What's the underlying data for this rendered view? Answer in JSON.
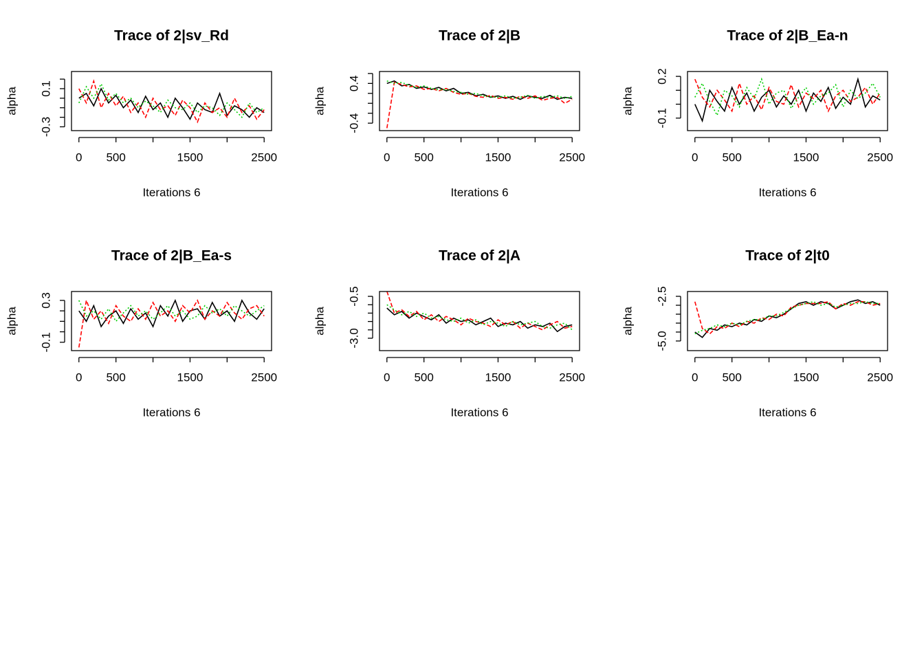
{
  "chart_data": [
    {
      "type": "line",
      "title": "Trace of 2|sv_Rd",
      "xlabel": "Iterations 6",
      "ylabel": "alpha",
      "x": [
        0,
        100,
        200,
        300,
        400,
        500,
        600,
        700,
        800,
        900,
        1000,
        1100,
        1200,
        1300,
        1400,
        1500,
        1600,
        1700,
        1800,
        1900,
        2000,
        2100,
        2200,
        2300,
        2400,
        2500
      ],
      "series": [
        {
          "color": "#000000",
          "linestyle": "solid",
          "values": [
            0.0,
            0.05,
            -0.08,
            0.1,
            -0.05,
            0.03,
            -0.1,
            -0.02,
            -0.15,
            0.02,
            -0.12,
            -0.05,
            -0.2,
            0.0,
            -0.1,
            -0.22,
            -0.05,
            -0.12,
            -0.15,
            0.05,
            -0.18,
            -0.08,
            -0.12,
            -0.2,
            -0.1,
            -0.15
          ]
        },
        {
          "color": "#ff0000",
          "linestyle": "dashed",
          "values": [
            0.1,
            -0.05,
            0.18,
            -0.1,
            0.05,
            -0.08,
            0.02,
            -0.15,
            -0.05,
            -0.2,
            0.0,
            -0.12,
            -0.08,
            -0.18,
            -0.02,
            -0.1,
            -0.25,
            -0.05,
            -0.15,
            -0.1,
            -0.2,
            0.0,
            -0.15,
            -0.08,
            -0.22,
            -0.12
          ]
        },
        {
          "color": "#00cd00",
          "linestyle": "dotted",
          "values": [
            -0.05,
            0.12,
            0.0,
            0.15,
            -0.02,
            0.05,
            -0.05,
            0.0,
            -0.1,
            -0.03,
            -0.08,
            -0.15,
            -0.02,
            -0.1,
            -0.12,
            -0.05,
            -0.15,
            -0.08,
            -0.1,
            -0.18,
            -0.05,
            -0.12,
            -0.2,
            -0.05,
            -0.15,
            -0.1
          ]
        }
      ],
      "xlim": [
        -100,
        2600
      ],
      "xticks": [
        0,
        500,
        1500,
        2500
      ],
      "xminor": [
        1000,
        2000
      ],
      "ylim": [
        -0.34,
        0.28
      ],
      "yticks": [
        -0.3,
        0.1
      ],
      "yminor": [
        -0.2,
        -0.1,
        0,
        0.2
      ]
    },
    {
      "type": "line",
      "title": "Trace of 2|B",
      "xlabel": "Iterations 6",
      "ylabel": "alpha",
      "x": [
        0,
        100,
        200,
        300,
        400,
        500,
        600,
        700,
        800,
        900,
        1000,
        1100,
        1200,
        1300,
        1400,
        1500,
        1600,
        1700,
        1800,
        1900,
        2000,
        2100,
        2200,
        2300,
        2400,
        2500
      ],
      "series": [
        {
          "color": "#000000",
          "linestyle": "solid",
          "values": [
            0.4,
            0.45,
            0.35,
            0.38,
            0.3,
            0.33,
            0.28,
            0.32,
            0.25,
            0.3,
            0.2,
            0.22,
            0.15,
            0.18,
            0.12,
            0.15,
            0.1,
            0.14,
            0.08,
            0.15,
            0.12,
            0.1,
            0.16,
            0.08,
            0.12,
            0.1
          ]
        },
        {
          "color": "#ff0000",
          "linestyle": "dashed",
          "values": [
            -0.5,
            0.42,
            0.38,
            0.33,
            0.35,
            0.28,
            0.3,
            0.25,
            0.3,
            0.22,
            0.18,
            0.2,
            0.14,
            0.12,
            0.16,
            0.1,
            0.12,
            0.08,
            0.14,
            0.1,
            0.15,
            0.06,
            0.1,
            0.12,
            0.0,
            0.08
          ]
        },
        {
          "color": "#00cd00",
          "linestyle": "dotted",
          "values": [
            0.45,
            0.4,
            0.42,
            0.36,
            0.32,
            0.35,
            0.3,
            0.27,
            0.28,
            0.24,
            0.22,
            0.18,
            0.2,
            0.15,
            0.13,
            0.12,
            0.15,
            0.1,
            0.12,
            0.16,
            0.1,
            0.14,
            0.12,
            0.15,
            0.1,
            0.14
          ]
        }
      ],
      "xlim": [
        -100,
        2600
      ],
      "xticks": [
        0,
        500,
        1500,
        2500
      ],
      "xminor": [
        1000,
        2000
      ],
      "ylim": [
        -0.55,
        0.64
      ],
      "yticks": [
        -0.4,
        0.4
      ],
      "yminor": [
        -0.2,
        0,
        0.2,
        0.6
      ]
    },
    {
      "type": "line",
      "title": "Trace of 2|B_Ea-n",
      "xlabel": "Iterations 6",
      "ylabel": "alpha",
      "x": [
        0,
        100,
        200,
        300,
        400,
        500,
        600,
        700,
        800,
        900,
        1000,
        1100,
        1200,
        1300,
        1400,
        1500,
        1600,
        1700,
        1800,
        1900,
        2000,
        2100,
        2200,
        2300,
        2400,
        2500
      ],
      "series": [
        {
          "color": "#000000",
          "linestyle": "solid",
          "values": [
            0.0,
            -0.12,
            0.1,
            0.02,
            -0.05,
            0.12,
            0.0,
            0.08,
            -0.05,
            0.05,
            0.1,
            -0.02,
            0.06,
            0.0,
            0.1,
            -0.05,
            0.08,
            0.02,
            0.12,
            -0.03,
            0.05,
            0.0,
            0.18,
            -0.02,
            0.06,
            0.03
          ]
        },
        {
          "color": "#ff0000",
          "linestyle": "dashed",
          "values": [
            0.18,
            0.05,
            -0.02,
            0.1,
            0.03,
            -0.05,
            0.15,
            0.0,
            0.06,
            -0.04,
            0.12,
            0.02,
            0.0,
            0.14,
            -0.02,
            0.08,
            0.04,
            0.1,
            -0.05,
            0.06,
            0.1,
            0.02,
            0.05,
            0.12,
            0.0,
            0.08
          ]
        },
        {
          "color": "#00cd00",
          "linestyle": "dotted",
          "values": [
            0.05,
            0.15,
            0.02,
            -0.08,
            0.1,
            0.06,
            -0.02,
            0.12,
            0.04,
            0.18,
            0.0,
            0.08,
            0.1,
            -0.03,
            0.05,
            0.12,
            0.0,
            0.06,
            0.08,
            0.14,
            -0.02,
            0.1,
            0.04,
            0.08,
            0.15,
            0.05
          ]
        }
      ],
      "xlim": [
        -100,
        2600
      ],
      "xticks": [
        0,
        500,
        1500,
        2500
      ],
      "xminor": [
        1000,
        2000
      ],
      "ylim": [
        -0.19,
        0.235
      ],
      "yticks": [
        -0.1,
        0.2
      ],
      "yminor": [
        0,
        0.1
      ]
    },
    {
      "type": "line",
      "title": "Trace of 2|B_Ea-s",
      "xlabel": "Iterations 6",
      "ylabel": "alpha",
      "x": [
        0,
        100,
        200,
        300,
        400,
        500,
        600,
        700,
        800,
        900,
        1000,
        1100,
        1200,
        1300,
        1400,
        1500,
        1600,
        1700,
        1800,
        1900,
        2000,
        2100,
        2200,
        2300,
        2400,
        2500
      ],
      "series": [
        {
          "color": "#000000",
          "linestyle": "solid",
          "values": [
            0.2,
            0.1,
            0.25,
            0.05,
            0.15,
            0.2,
            0.08,
            0.22,
            0.12,
            0.18,
            0.05,
            0.25,
            0.15,
            0.3,
            0.1,
            0.2,
            0.22,
            0.12,
            0.28,
            0.15,
            0.2,
            0.1,
            0.3,
            0.18,
            0.12,
            0.22
          ]
        },
        {
          "color": "#ff0000",
          "linestyle": "dashed",
          "values": [
            -0.15,
            0.3,
            0.12,
            0.2,
            0.08,
            0.25,
            0.15,
            0.1,
            0.22,
            0.12,
            0.28,
            0.15,
            0.2,
            0.1,
            0.25,
            0.18,
            0.3,
            0.12,
            0.2,
            0.15,
            0.28,
            0.18,
            0.12,
            0.22,
            0.25,
            0.15
          ]
        },
        {
          "color": "#00cd00",
          "linestyle": "dotted",
          "values": [
            0.3,
            0.15,
            0.2,
            0.12,
            0.22,
            0.1,
            0.18,
            0.25,
            0.15,
            0.2,
            0.12,
            0.18,
            0.25,
            0.15,
            0.2,
            0.12,
            0.15,
            0.25,
            0.18,
            0.22,
            0.15,
            0.25,
            0.2,
            0.15,
            0.2,
            0.25
          ]
        }
      ],
      "xlim": [
        -100,
        2600
      ],
      "xticks": [
        0,
        500,
        1500,
        2500
      ],
      "xminor": [
        1000,
        2000
      ],
      "ylim": [
        -0.18,
        0.385
      ],
      "yticks": [
        -0.1,
        0.3
      ],
      "yminor": [
        0,
        0.1,
        0.2
      ]
    },
    {
      "type": "line",
      "title": "Trace of 2|A",
      "xlabel": "Iterations 6",
      "ylabel": "alpha",
      "x": [
        0,
        100,
        200,
        300,
        400,
        500,
        600,
        700,
        800,
        900,
        1000,
        1100,
        1200,
        1300,
        1400,
        1500,
        1600,
        1700,
        1800,
        1900,
        2000,
        2100,
        2200,
        2300,
        2400,
        2500
      ],
      "series": [
        {
          "color": "#000000",
          "linestyle": "solid",
          "values": [
            -1.2,
            -1.6,
            -1.4,
            -1.8,
            -1.5,
            -1.7,
            -1.9,
            -1.6,
            -2.1,
            -1.8,
            -2.0,
            -1.9,
            -2.2,
            -2.0,
            -1.8,
            -2.3,
            -2.1,
            -2.2,
            -2.0,
            -2.4,
            -2.2,
            -2.3,
            -2.1,
            -2.6,
            -2.3,
            -2.2
          ]
        },
        {
          "color": "#ff0000",
          "linestyle": "dashed",
          "values": [
            -0.2,
            -1.5,
            -1.3,
            -1.7,
            -1.4,
            -1.9,
            -1.6,
            -2.0,
            -1.7,
            -1.9,
            -2.2,
            -1.8,
            -2.0,
            -2.1,
            -2.3,
            -1.9,
            -2.2,
            -2.0,
            -2.4,
            -2.1,
            -2.3,
            -2.5,
            -2.2,
            -2.0,
            -2.4,
            -2.3
          ]
        },
        {
          "color": "#00cd00",
          "linestyle": "dotted",
          "values": [
            -1.0,
            -1.3,
            -1.6,
            -1.4,
            -1.7,
            -1.5,
            -1.8,
            -1.7,
            -1.9,
            -2.0,
            -1.8,
            -2.1,
            -1.9,
            -2.2,
            -2.0,
            -2.1,
            -2.3,
            -2.0,
            -2.2,
            -2.1,
            -2.0,
            -2.3,
            -2.4,
            -2.2,
            -2.1,
            -2.5
          ]
        }
      ],
      "xlim": [
        -100,
        2600
      ],
      "xticks": [
        0,
        500,
        1500,
        2500
      ],
      "xminor": [
        1000,
        2000
      ],
      "ylim": [
        -3.74,
        -0.21
      ],
      "yticks": [
        {
          "value": -3,
          "label": "-3.0"
        },
        -0.5
      ],
      "yminor": [
        -2.5,
        -2,
        -1.5,
        -1
      ]
    },
    {
      "type": "line",
      "title": "Trace of 2|t0",
      "xlabel": "Iterations 6",
      "ylabel": "alpha",
      "x": [
        0,
        100,
        200,
        300,
        400,
        500,
        600,
        700,
        800,
        900,
        1000,
        1100,
        1200,
        1300,
        1400,
        1500,
        1600,
        1700,
        1800,
        1900,
        2000,
        2100,
        2200,
        2300,
        2400,
        2500
      ],
      "series": [
        {
          "color": "#000000",
          "linestyle": "solid",
          "values": [
            -4.5,
            -4.8,
            -4.3,
            -4.4,
            -4.1,
            -4.2,
            -4.0,
            -4.1,
            -3.8,
            -3.9,
            -3.6,
            -3.7,
            -3.5,
            -3.2,
            -2.9,
            -2.8,
            -3.0,
            -2.8,
            -2.9,
            -3.2,
            -3.0,
            -2.8,
            -2.7,
            -2.9,
            -2.8,
            -3.0
          ]
        },
        {
          "color": "#ff0000",
          "linestyle": "dashed",
          "values": [
            -2.8,
            -4.3,
            -4.6,
            -4.2,
            -4.3,
            -4.0,
            -4.2,
            -3.9,
            -4.0,
            -3.7,
            -3.8,
            -3.5,
            -3.6,
            -3.1,
            -3.0,
            -2.9,
            -2.9,
            -2.9,
            -2.8,
            -3.2,
            -2.9,
            -3.0,
            -2.8,
            -2.8,
            -3.0,
            -2.9
          ]
        },
        {
          "color": "#00cd00",
          "linestyle": "dotted",
          "values": [
            -4.6,
            -4.4,
            -4.3,
            -4.1,
            -4.2,
            -4.0,
            -4.1,
            -3.9,
            -3.8,
            -3.8,
            -3.6,
            -3.6,
            -3.4,
            -3.2,
            -3.0,
            -2.9,
            -2.8,
            -3.0,
            -2.9,
            -3.1,
            -3.0,
            -2.9,
            -2.9,
            -2.8,
            -2.9,
            -2.9
          ]
        }
      ],
      "xlim": [
        -100,
        2600
      ],
      "xticks": [
        0,
        500,
        1500,
        2500
      ],
      "xminor": [
        1000,
        2000
      ],
      "ylim": [
        -5.54,
        -2.23
      ],
      "yticks": [
        {
          "value": -5,
          "label": "-5.0"
        },
        -2.5
      ],
      "yminor": [
        -4.5,
        -4,
        -3.5,
        -3
      ]
    }
  ]
}
